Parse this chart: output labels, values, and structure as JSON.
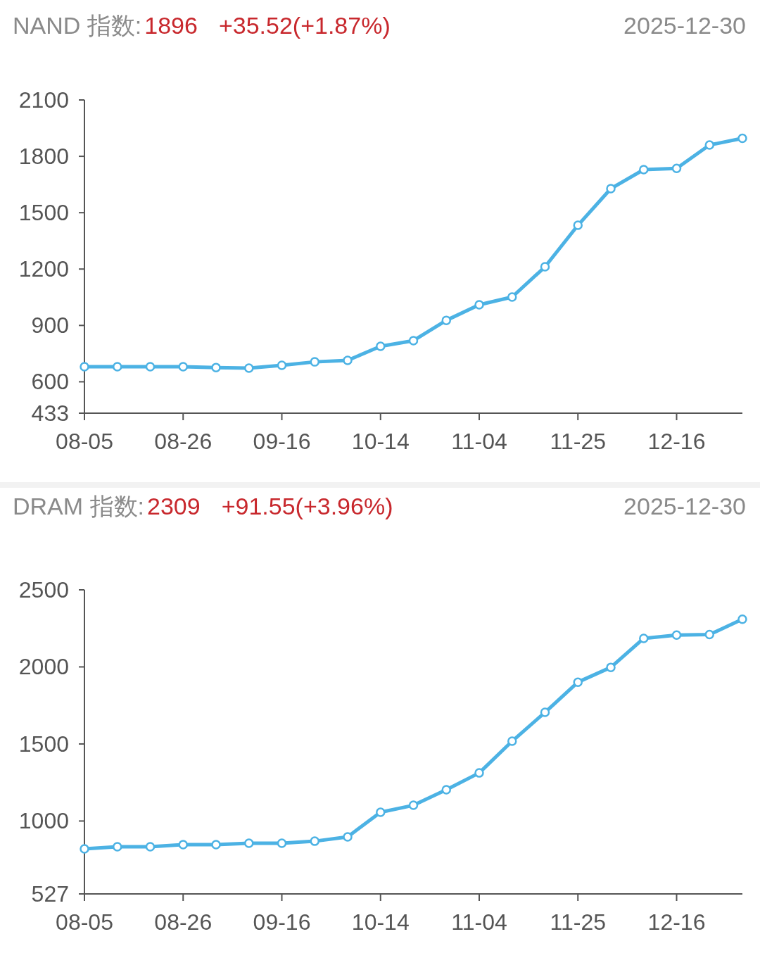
{
  "chart_data": [
    {
      "type": "line",
      "title": "NAND 指数:",
      "subtitle": "2025-12-30",
      "annotations": [
        "1896",
        "+35.52(+1.87%)"
      ],
      "categories": [
        "08-05",
        null,
        null,
        "08-26",
        null,
        null,
        "09-16",
        null,
        null,
        "10-14",
        null,
        null,
        "11-04",
        null,
        null,
        "11-25",
        null,
        null,
        "12-16",
        null,
        null
      ],
      "series": [
        {
          "color": "#4cb2e4",
          "values": [
            680,
            680,
            680,
            680,
            676,
            673,
            688,
            706,
            714,
            789,
            819,
            927,
            1010,
            1051,
            1212,
            1433,
            1628,
            1729,
            1736,
            1860,
            1896
          ]
        }
      ],
      "ylim": [
        433,
        2100
      ],
      "yticks": [
        433,
        600,
        900,
        1200,
        1500,
        1800,
        2100
      ],
      "grid": false,
      "marker": "circle",
      "line_style": "solid"
    },
    {
      "type": "line",
      "title": "DRAM 指数:",
      "subtitle": "2025-12-30",
      "annotations": [
        "2309",
        "+91.55(+3.96%)"
      ],
      "categories": [
        "08-05",
        null,
        null,
        "08-26",
        null,
        null,
        "09-16",
        null,
        null,
        "10-14",
        null,
        null,
        "11-04",
        null,
        null,
        "11-25",
        null,
        null,
        "12-16",
        null,
        null
      ],
      "series": [
        {
          "color": "#4cb2e4",
          "values": [
            819,
            833,
            833,
            847,
            847,
            856,
            856,
            869,
            897,
            1057,
            1102,
            1203,
            1312,
            1518,
            1705,
            1901,
            1997,
            2185,
            2207,
            2210,
            2309
          ]
        }
      ],
      "ylim": [
        527,
        2500
      ],
      "yticks": [
        527,
        1000,
        1500,
        2000,
        2500
      ],
      "grid": false,
      "marker": "circle",
      "line_style": "solid"
    }
  ]
}
